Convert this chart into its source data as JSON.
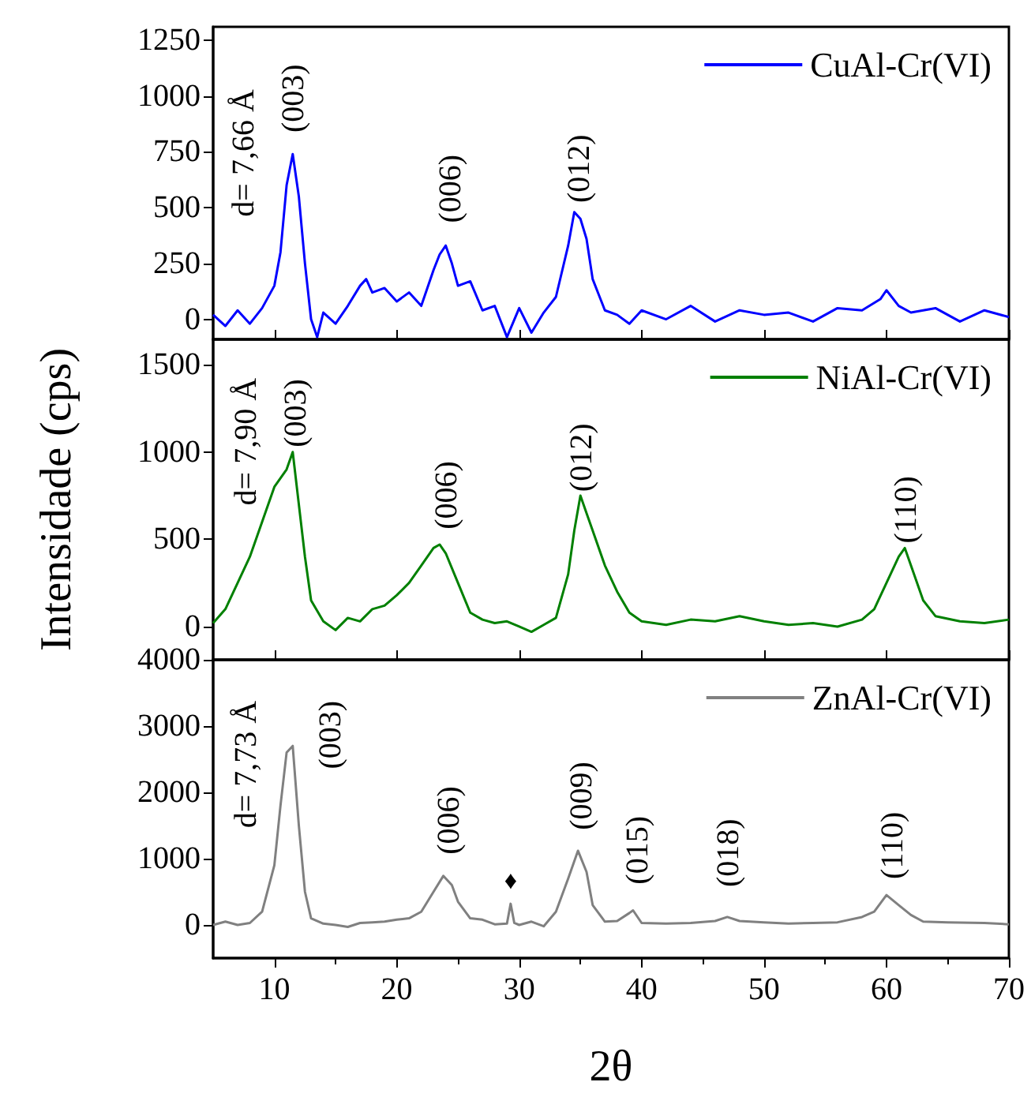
{
  "chart_data": [
    {
      "type": "line",
      "xlim": [
        5,
        70
      ],
      "xticks": [
        10,
        20,
        30,
        40,
        50,
        60,
        70
      ],
      "ylim": [
        -90,
        1310
      ],
      "yticks": [
        0,
        250,
        500,
        750,
        1000,
        1250
      ],
      "tick_labels": "y",
      "legend": "top right",
      "line_style": "solid",
      "marker": "none",
      "series": [
        {
          "name": "CuAl-Cr(VI)",
          "color": "#0000ff",
          "x": [
            5,
            6,
            7,
            8,
            9,
            10,
            10.5,
            11,
            11.5,
            12,
            12.5,
            13,
            13.5,
            14,
            15,
            16,
            17,
            17.5,
            18,
            19,
            20,
            21,
            22,
            23,
            23.5,
            24,
            24.5,
            25,
            26,
            27,
            28,
            29,
            30,
            31,
            32,
            33,
            34,
            34.5,
            35,
            35.5,
            36,
            37,
            38,
            39,
            40,
            42,
            44,
            46,
            48,
            50,
            52,
            54,
            56,
            58,
            59.5,
            60,
            61,
            62,
            64,
            66,
            68,
            70
          ],
          "values": [
            20,
            -30,
            40,
            -20,
            50,
            150,
            300,
            600,
            740,
            550,
            250,
            0,
            -80,
            30,
            -20,
            60,
            150,
            180,
            120,
            140,
            80,
            120,
            60,
            220,
            290,
            330,
            250,
            150,
            170,
            40,
            60,
            -80,
            50,
            -60,
            30,
            100,
            330,
            480,
            450,
            360,
            180,
            40,
            20,
            -20,
            40,
            0,
            60,
            -10,
            40,
            20,
            30,
            -10,
            50,
            40,
            90,
            130,
            60,
            30,
            50,
            -10,
            40,
            10
          ]
        }
      ],
      "annotations": [
        "d= 7,66 Å",
        "(003)",
        "(006)",
        "(012)"
      ]
    },
    {
      "type": "line",
      "xlim": [
        5,
        70
      ],
      "xticks": [
        10,
        20,
        30,
        40,
        50,
        60,
        70
      ],
      "ylim": [
        -190,
        1645
      ],
      "yticks": [
        0,
        500,
        1000,
        1500
      ],
      "tick_labels": "y",
      "legend": "top right",
      "line_style": "solid",
      "marker": "none",
      "ylabel": "Intensidade (cps)",
      "series": [
        {
          "name": "NiAl-Cr(VI)",
          "color": "#008000",
          "x": [
            5,
            6,
            7,
            8,
            9,
            10,
            10.5,
            11,
            11.5,
            12,
            12.5,
            13,
            14,
            15,
            16,
            17,
            18,
            19,
            20,
            21,
            22,
            23,
            23.5,
            24,
            25,
            26,
            27,
            28,
            29,
            30,
            31,
            32,
            33,
            34,
            34.5,
            35,
            35.5,
            36,
            37,
            38,
            39,
            40,
            42,
            44,
            46,
            48,
            50,
            52,
            54,
            56,
            58,
            59,
            60,
            61,
            61.5,
            62,
            63,
            64,
            66,
            68,
            70
          ],
          "values": [
            20,
            100,
            250,
            400,
            600,
            800,
            850,
            900,
            1000,
            700,
            400,
            150,
            30,
            -20,
            50,
            30,
            100,
            120,
            180,
            250,
            350,
            450,
            470,
            420,
            250,
            80,
            40,
            20,
            30,
            0,
            -30,
            10,
            50,
            300,
            550,
            750,
            650,
            550,
            350,
            200,
            80,
            30,
            10,
            40,
            30,
            60,
            30,
            10,
            20,
            0,
            40,
            100,
            250,
            400,
            450,
            350,
            150,
            60,
            30,
            20,
            40
          ]
        }
      ],
      "annotations": [
        "d= 7,90 Å",
        "(003)",
        "(006)",
        "(012)",
        "(110)"
      ]
    },
    {
      "type": "line",
      "xlim": [
        5,
        70
      ],
      "xticks": [
        10,
        20,
        30,
        40,
        50,
        60,
        70
      ],
      "ylim": [
        -500,
        4000
      ],
      "yticks": [
        0,
        1000,
        2000,
        3000,
        4000
      ],
      "legend": "top right",
      "line_style": "solid",
      "marker": "none",
      "xlabel": "2θ",
      "series": [
        {
          "name": "ZnAl-Cr(VI)",
          "color": "#808080",
          "x": [
            5,
            6,
            7,
            8,
            9,
            10,
            10.5,
            11,
            11.5,
            12,
            12.5,
            13,
            14,
            15,
            16,
            17,
            18,
            19,
            20,
            21,
            22,
            23,
            23.8,
            24.5,
            25,
            26,
            27,
            28,
            29,
            29.3,
            29.6,
            30,
            31,
            32,
            33,
            34,
            34.8,
            35.5,
            36,
            37,
            38,
            39,
            39.3,
            40,
            42,
            44,
            46,
            47,
            48,
            50,
            52,
            54,
            56,
            58,
            59,
            60,
            61,
            62,
            63,
            65,
            68,
            70
          ],
          "values": [
            0,
            50,
            0,
            30,
            200,
            900,
            1800,
            2600,
            2700,
            1500,
            500,
            100,
            20,
            0,
            -30,
            30,
            40,
            50,
            80,
            100,
            200,
            500,
            740,
            600,
            350,
            100,
            80,
            10,
            20,
            320,
            30,
            0,
            50,
            -20,
            200,
            700,
            1120,
            800,
            300,
            50,
            60,
            180,
            220,
            30,
            20,
            30,
            60,
            120,
            60,
            40,
            20,
            30,
            40,
            120,
            200,
            450,
            300,
            150,
            50,
            40,
            30,
            10
          ]
        }
      ],
      "annotations": [
        "d= 7,73 Å",
        "(003)",
        "(006)",
        "♦",
        "(009)",
        "(015)",
        "(018)",
        "(110)"
      ]
    }
  ]
}
